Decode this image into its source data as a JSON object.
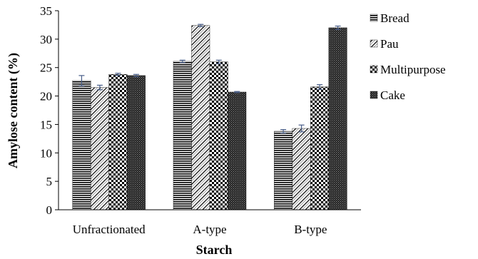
{
  "chart_data": {
    "type": "bar",
    "xlabel": "Starch",
    "ylabel": "Amylose content (%)",
    "ylim": [
      0,
      35
    ],
    "yticks": [
      0,
      5,
      10,
      15,
      20,
      25,
      30,
      35
    ],
    "grid": false,
    "legend_position": "right",
    "categories": [
      "Unfractionated",
      "A-type",
      "B-type"
    ],
    "series": [
      {
        "name": "Bread",
        "pattern": "horizontal-lines",
        "values": [
          22.7,
          26.1,
          13.8
        ],
        "errors": [
          0.9,
          0.2,
          0.3
        ]
      },
      {
        "name": "Pau",
        "pattern": "diagonal-hatch",
        "values": [
          21.5,
          32.4,
          14.3
        ],
        "errors": [
          0.4,
          0.2,
          0.6
        ]
      },
      {
        "name": "Multipurpose",
        "pattern": "checkerboard",
        "values": [
          23.8,
          26.0,
          21.6
        ],
        "errors": [
          0.2,
          0.3,
          0.4
        ]
      },
      {
        "name": "Cake",
        "pattern": "fine-dots",
        "values": [
          23.6,
          20.7,
          32.0
        ],
        "errors": [
          0.2,
          0.1,
          0.3
        ]
      }
    ],
    "colors": {
      "axis": "#000000",
      "error_bar": "#4a5f8a",
      "bar_ink": "#000000"
    }
  }
}
